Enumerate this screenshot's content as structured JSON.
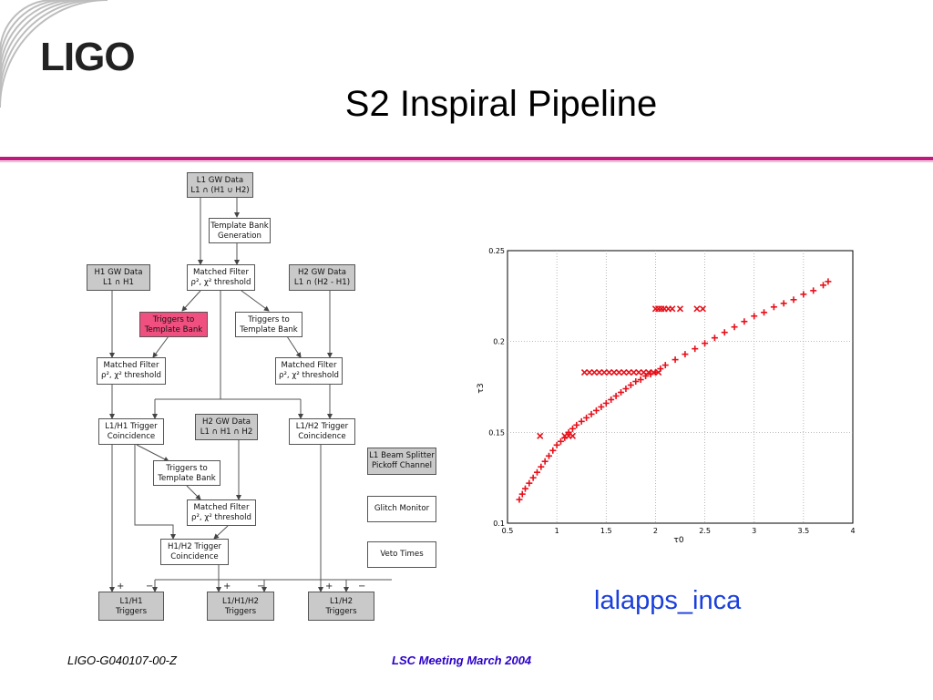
{
  "slide": {
    "logo": "LIGO",
    "title": "S2 Inspiral Pipeline",
    "code_label": "lalapps_inca",
    "footer_left": "LIGO-G040107-00-Z",
    "footer_center": "LSC Meeting March 2004",
    "accent_color": "#c2187b"
  },
  "flowchart": {
    "nodes": {
      "l1_data": {
        "line1": "L1 GW Data",
        "line2": "L1 ∩ (H1 ∪ H2)"
      },
      "bank_gen": {
        "line1": "Template Bank",
        "line2": "Generation"
      },
      "h1_data": {
        "line1": "H1 GW Data",
        "line2": "L1 ∩ H1"
      },
      "mf_l1": {
        "line1": "Matched Filter",
        "line2": "ρ², χ² threshold"
      },
      "h2_data": {
        "line1": "H2 GW Data",
        "line2": "L1 ∩ (H2 - H1)"
      },
      "trig_bank_h1": {
        "line1": "Triggers to",
        "line2": "Template Bank"
      },
      "trig_bank_h2": {
        "line1": "Triggers to",
        "line2": "Template Bank"
      },
      "mf_h1": {
        "line1": "Matched Filter",
        "line2": "ρ², χ² threshold"
      },
      "mf_h2": {
        "line1": "Matched Filter",
        "line2": "ρ², χ² threshold"
      },
      "coinc_l1h1": {
        "line1": "L1/H1 Trigger",
        "line2": "Coincidence"
      },
      "h2_data2": {
        "line1": "H2 GW Data",
        "line2": "L1 ∩ H1 ∩ H2"
      },
      "coinc_l1h2": {
        "line1": "L1/H2 Trigger",
        "line2": "Coincidence"
      },
      "beam_splitter": {
        "line1": "L1 Beam Splitter",
        "line2": "Pickoff Channel"
      },
      "trig_bank_3": {
        "line1": "Triggers to",
        "line2": "Template Bank"
      },
      "glitch": {
        "line1": "Glitch Monitor",
        "line2": ""
      },
      "mf_h2b": {
        "line1": "Matched Filter",
        "line2": "ρ², χ² threshold"
      },
      "coinc_h1h2": {
        "line1": "H1/H2 Trigger",
        "line2": "Coincidence"
      },
      "veto": {
        "line1": "Veto Times",
        "line2": ""
      },
      "out_l1h1": {
        "line1": "L1/H1",
        "line2": "Triggers"
      },
      "out_l1h1h2": {
        "line1": "L1/H1/H2",
        "line2": "Triggers"
      },
      "out_l1h2": {
        "line1": "L1/H2",
        "line2": "Triggers"
      }
    },
    "signs": {
      "plus": "+",
      "minus": "−"
    }
  },
  "chart_data": {
    "type": "scatter",
    "title": "",
    "xlabel": "τ0",
    "ylabel": "τ3",
    "xlim": [
      0.5,
      4
    ],
    "ylim": [
      0.1,
      0.25
    ],
    "xticks": [
      0.5,
      1,
      1.5,
      2,
      2.5,
      3,
      3.5,
      4
    ],
    "yticks": [
      0.1,
      0.15,
      0.2,
      0.25
    ],
    "grid": true,
    "marker_color": "#e8101a",
    "series": [
      {
        "marker": "plus",
        "description_points": "main curve",
        "x": [
          0.62,
          0.65,
          0.68,
          0.72,
          0.76,
          0.8,
          0.84,
          0.88,
          0.92,
          0.96,
          1.0,
          1.04,
          1.08,
          1.12,
          1.16,
          1.2,
          1.25,
          1.3,
          1.35,
          1.4,
          1.45,
          1.5,
          1.55,
          1.6,
          1.65,
          1.7,
          1.75,
          1.8,
          1.85,
          1.9,
          1.95,
          2.0,
          2.05,
          2.1,
          2.2,
          2.3,
          2.4,
          2.5,
          2.6,
          2.7,
          2.8,
          2.9,
          3.0,
          3.1,
          3.2,
          3.3,
          3.4,
          3.5,
          3.6,
          3.7,
          3.75
        ],
        "y": [
          0.113,
          0.116,
          0.119,
          0.122,
          0.125,
          0.128,
          0.131,
          0.134,
          0.137,
          0.14,
          0.143,
          0.145,
          0.147,
          0.15,
          0.152,
          0.154,
          0.156,
          0.158,
          0.16,
          0.162,
          0.164,
          0.166,
          0.168,
          0.17,
          0.172,
          0.174,
          0.176,
          0.178,
          0.179,
          0.181,
          0.182,
          0.183,
          0.185,
          0.187,
          0.19,
          0.193,
          0.196,
          0.199,
          0.202,
          0.205,
          0.208,
          0.211,
          0.214,
          0.216,
          0.219,
          0.221,
          0.223,
          0.226,
          0.228,
          0.231,
          0.233
        ]
      },
      {
        "marker": "x",
        "description_points": "flat clusters",
        "x": [
          1.28,
          1.33,
          1.38,
          1.43,
          1.48,
          1.53,
          1.58,
          1.63,
          1.68,
          1.73,
          1.78,
          1.83,
          1.88,
          1.93,
          1.98,
          2.03,
          1.08,
          1.12,
          1.16,
          2.0,
          2.03,
          2.06,
          2.09,
          2.13,
          2.17,
          2.25,
          2.42,
          2.48,
          0.83
        ],
        "y": [
          0.183,
          0.183,
          0.183,
          0.183,
          0.183,
          0.183,
          0.183,
          0.183,
          0.183,
          0.183,
          0.183,
          0.183,
          0.183,
          0.183,
          0.183,
          0.183,
          0.148,
          0.148,
          0.148,
          0.218,
          0.218,
          0.218,
          0.218,
          0.218,
          0.218,
          0.218,
          0.218,
          0.218,
          0.148
        ]
      }
    ]
  }
}
